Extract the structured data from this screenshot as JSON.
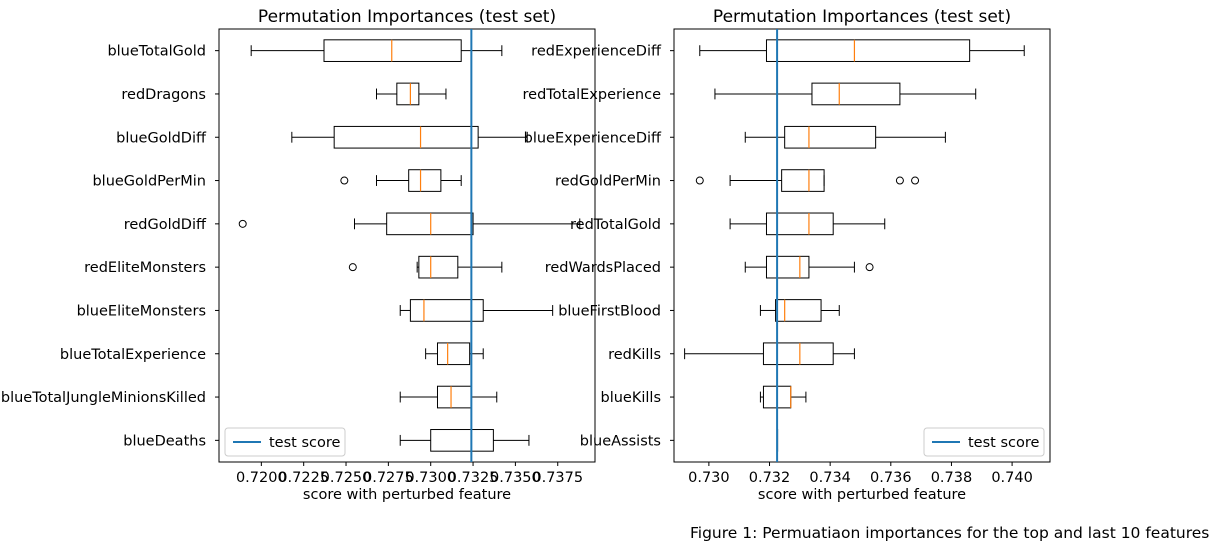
{
  "caption": "Figure 1: Permuatiaon importances for the top and last 10 features",
  "chart_data": [
    {
      "type": "boxplot",
      "orientation": "horizontal",
      "title": "Permutation Importances (test set)",
      "xlabel": "score with perturbed feature",
      "ylabel": "",
      "xlim": [
        0.7175,
        0.7397
      ],
      "xticks": [
        "0.7200",
        "0.7225",
        "0.7250",
        "0.7275",
        "0.7300",
        "0.7325",
        "0.7350",
        "0.7375"
      ],
      "xtick_values": [
        0.72,
        0.7225,
        0.725,
        0.7275,
        0.73,
        0.7325,
        0.735,
        0.7375
      ],
      "reference_line": {
        "label": "test score",
        "value": 0.7324,
        "color": "#1f77b4"
      },
      "legend": {
        "position": "lower-left",
        "entries": [
          "test score"
        ]
      },
      "box_color": "#000000",
      "median_color": "#ff7f0e",
      "categories": [
        "blueTotalGold",
        "redDragons",
        "blueGoldDiff",
        "blueGoldPerMin",
        "redGoldDiff",
        "redEliteMonsters",
        "blueEliteMonsters",
        "blueTotalExperience",
        "blueTotalJungleMinionsKilled",
        "blueDeaths"
      ],
      "boxes": [
        {
          "label": "blueTotalGold",
          "whislo": 0.7194,
          "q1": 0.7237,
          "med": 0.7277,
          "q3": 0.7318,
          "whishi": 0.7342,
          "fliers": []
        },
        {
          "label": "redDragons",
          "whislo": 0.7268,
          "q1": 0.728,
          "med": 0.7288,
          "q3": 0.7293,
          "whishi": 0.7309,
          "fliers": []
        },
        {
          "label": "blueGoldDiff",
          "whislo": 0.7218,
          "q1": 0.7243,
          "med": 0.7294,
          "q3": 0.7328,
          "whishi": 0.7357,
          "fliers": []
        },
        {
          "label": "blueGoldPerMin",
          "whislo": 0.7268,
          "q1": 0.7287,
          "med": 0.7294,
          "q3": 0.7306,
          "whishi": 0.7318,
          "fliers": [
            0.7249
          ]
        },
        {
          "label": "redGoldDiff",
          "whislo": 0.7255,
          "q1": 0.7274,
          "med": 0.73,
          "q3": 0.7325,
          "whishi": 0.7388,
          "fliers": [
            0.7189
          ]
        },
        {
          "label": "redEliteMonsters",
          "whislo": 0.7292,
          "q1": 0.7293,
          "med": 0.73,
          "q3": 0.7316,
          "whishi": 0.7342,
          "fliers": [
            0.7254
          ]
        },
        {
          "label": "blueEliteMonsters",
          "whislo": 0.7282,
          "q1": 0.7288,
          "med": 0.7296,
          "q3": 0.7331,
          "whishi": 0.7372,
          "fliers": []
        },
        {
          "label": "blueTotalExperience",
          "whislo": 0.7297,
          "q1": 0.7304,
          "med": 0.731,
          "q3": 0.7323,
          "whishi": 0.7331,
          "fliers": []
        },
        {
          "label": "blueTotalJungleMinionsKilled",
          "whislo": 0.7282,
          "q1": 0.7304,
          "med": 0.7312,
          "q3": 0.7324,
          "whishi": 0.7339,
          "fliers": []
        },
        {
          "label": "blueDeaths",
          "whislo": 0.7282,
          "q1": 0.73,
          "med": 0.7324,
          "q3": 0.7337,
          "whishi": 0.7358,
          "fliers": []
        }
      ]
    },
    {
      "type": "boxplot",
      "orientation": "horizontal",
      "title": "Permutation Importances (test set)",
      "xlabel": "score with perturbed feature",
      "ylabel": "",
      "xlim": [
        0.72885,
        0.74125
      ],
      "xticks": [
        "0.730",
        "0.732",
        "0.734",
        "0.736",
        "0.738",
        "0.740"
      ],
      "xtick_values": [
        0.73,
        0.732,
        0.734,
        0.736,
        0.738,
        0.74
      ],
      "reference_line": {
        "label": "test score",
        "value": 0.73225,
        "color": "#1f77b4"
      },
      "legend": {
        "position": "lower-right",
        "entries": [
          "test score"
        ]
      },
      "box_color": "#000000",
      "median_color": "#ff7f0e",
      "categories": [
        "redExperienceDiff",
        "redTotalExperience",
        "blueExperienceDiff",
        "redGoldPerMin",
        "redTotalGold",
        "redWardsPlaced",
        "blueFirstBlood",
        "redKills",
        "blueKills",
        "blueAssists"
      ],
      "boxes": [
        {
          "label": "redExperienceDiff",
          "whislo": 0.7297,
          "q1": 0.7319,
          "med": 0.7348,
          "q3": 0.7386,
          "whishi": 0.7404,
          "fliers": []
        },
        {
          "label": "redTotalExperience",
          "whislo": 0.7302,
          "q1": 0.7334,
          "med": 0.7343,
          "q3": 0.7363,
          "whishi": 0.7388,
          "fliers": []
        },
        {
          "label": "blueExperienceDiff",
          "whislo": 0.7312,
          "q1": 0.7325,
          "med": 0.7333,
          "q3": 0.7355,
          "whishi": 0.7378,
          "fliers": []
        },
        {
          "label": "redGoldPerMin",
          "whislo": 0.7307,
          "q1": 0.7324,
          "med": 0.7333,
          "q3": 0.7338,
          "whishi": 0.7338,
          "fliers": [
            0.7297,
            0.7363,
            0.7368
          ]
        },
        {
          "label": "redTotalGold",
          "whislo": 0.7307,
          "q1": 0.7319,
          "med": 0.7333,
          "q3": 0.7341,
          "whishi": 0.7358,
          "fliers": []
        },
        {
          "label": "redWardsPlaced",
          "whislo": 0.7312,
          "q1": 0.7319,
          "med": 0.733,
          "q3": 0.7333,
          "whishi": 0.7348,
          "fliers": [
            0.7353
          ]
        },
        {
          "label": "blueFirstBlood",
          "whislo": 0.7317,
          "q1": 0.7322,
          "med": 0.7325,
          "q3": 0.7337,
          "whishi": 0.7343,
          "fliers": []
        },
        {
          "label": "redKills",
          "whislo": 0.7292,
          "q1": 0.7318,
          "med": 0.733,
          "q3": 0.7341,
          "whishi": 0.7348,
          "fliers": []
        },
        {
          "label": "blueKills",
          "whislo": 0.7317,
          "q1": 0.7318,
          "med": 0.7327,
          "q3": 0.7327,
          "whishi": 0.7332,
          "fliers": []
        },
        {
          "label": "blueAssists",
          "whislo": 0.73225,
          "q1": 0.73225,
          "med": 0.73225,
          "q3": 0.73225,
          "whishi": 0.73225,
          "fliers": []
        }
      ]
    }
  ]
}
